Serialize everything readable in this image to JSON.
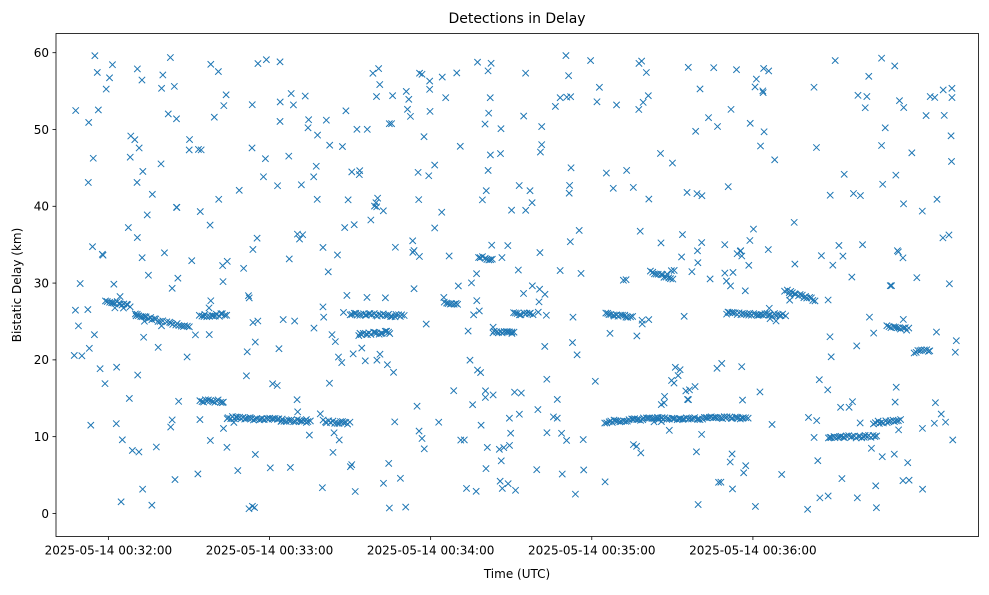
{
  "chart_data": {
    "type": "scatter",
    "title": "Detections in Delay",
    "xlabel": "Time (UTC)",
    "ylabel": "Bistatic Delay (km)",
    "x_unit": "seconds past 2025-05-14 00:31:00 UTC",
    "xlim": [
      40.5,
      384
    ],
    "ylim": [
      -3,
      62.5
    ],
    "xticks": [
      {
        "value": 60,
        "label": "2025-05-14 00:32:00"
      },
      {
        "value": 120,
        "label": "2025-05-14 00:33:00"
      },
      {
        "value": 180,
        "label": "2025-05-14 00:34:00"
      },
      {
        "value": 240,
        "label": "2025-05-14 00:35:00"
      },
      {
        "value": 300,
        "label": "2025-05-14 00:36:00"
      }
    ],
    "yticks": [
      0,
      10,
      20,
      30,
      40,
      50,
      60
    ],
    "grid": false,
    "legend": "none",
    "marker": "x",
    "color": "#1f77b4",
    "tracks": [
      {
        "x0": 59,
        "y0": 27.8,
        "x1": 68,
        "y1": 27.0
      },
      {
        "x0": 70,
        "y0": 26.0,
        "x1": 80,
        "y1": 25.0
      },
      {
        "x0": 82,
        "y0": 24.8,
        "x1": 90,
        "y1": 24.3
      },
      {
        "x0": 94,
        "y0": 25.7,
        "x1": 104,
        "y1": 25.9
      },
      {
        "x0": 94,
        "y0": 14.7,
        "x1": 103,
        "y1": 14.6
      },
      {
        "x0": 104,
        "y0": 12.5,
        "x1": 135,
        "y1": 12.0
      },
      {
        "x0": 140,
        "y0": 12.0,
        "x1": 150,
        "y1": 11.8
      },
      {
        "x0": 150,
        "y0": 26.0,
        "x1": 170,
        "y1": 25.7
      },
      {
        "x0": 153,
        "y0": 23.3,
        "x1": 165,
        "y1": 23.6
      },
      {
        "x0": 185,
        "y0": 27.5,
        "x1": 190,
        "y1": 27.2
      },
      {
        "x0": 198,
        "y0": 33.5,
        "x1": 203,
        "y1": 33.0
      },
      {
        "x0": 203,
        "y0": 23.6,
        "x1": 211,
        "y1": 23.6
      },
      {
        "x0": 211,
        "y0": 26.0,
        "x1": 218,
        "y1": 26.0
      },
      {
        "x0": 245,
        "y0": 11.9,
        "x1": 265,
        "y1": 12.4
      },
      {
        "x0": 265,
        "y0": 12.3,
        "x1": 298,
        "y1": 12.5
      },
      {
        "x0": 245,
        "y0": 26.0,
        "x1": 255,
        "y1": 25.6
      },
      {
        "x0": 262,
        "y0": 31.5,
        "x1": 270,
        "y1": 30.5
      },
      {
        "x0": 290,
        "y0": 26.1,
        "x1": 312,
        "y1": 25.8
      },
      {
        "x0": 312,
        "y0": 29.0,
        "x1": 323,
        "y1": 27.8
      },
      {
        "x0": 328,
        "y0": 10.0,
        "x1": 346,
        "y1": 10.0
      },
      {
        "x0": 345,
        "y0": 11.8,
        "x1": 355,
        "y1": 12.2
      },
      {
        "x0": 350,
        "y0": 24.3,
        "x1": 358,
        "y1": 24.0
      },
      {
        "x0": 360,
        "y0": 21.0,
        "x1": 366,
        "y1": 21.3
      }
    ],
    "scatter": {
      "count": 560,
      "x_range": [
        47,
        376
      ],
      "y_range": [
        0.5,
        59.8
      ]
    }
  }
}
